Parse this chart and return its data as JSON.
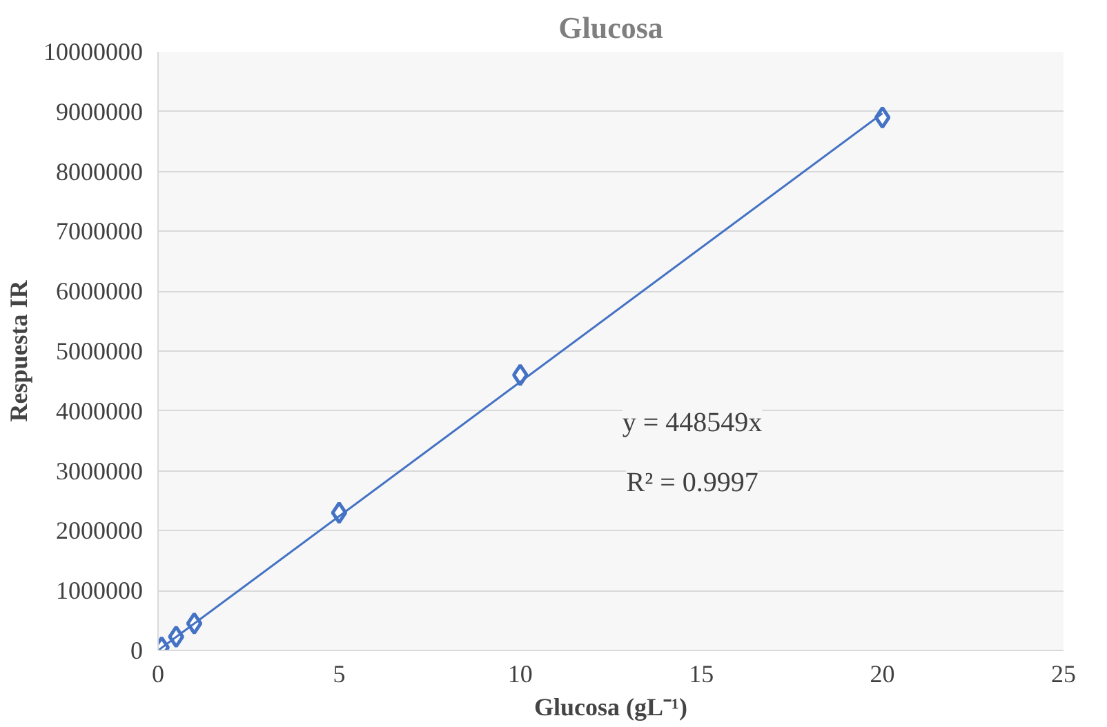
{
  "chart_data": {
    "type": "scatter",
    "title": "Glucosa",
    "xlabel": "Glucosa (gL⁻¹)",
    "ylabel": "Respuesta IR",
    "xlim": [
      0,
      25
    ],
    "xticks": [
      0,
      5,
      10,
      15,
      20,
      25
    ],
    "ylim": [
      0,
      10000000
    ],
    "yticks": [
      0,
      1000000,
      2000000,
      3000000,
      4000000,
      5000000,
      6000000,
      7000000,
      8000000,
      9000000,
      10000000
    ],
    "grid": "y",
    "series": [
      {
        "color": "#4472c4",
        "marker": "diamond",
        "x": [
          0.1,
          0.5,
          1,
          5,
          10,
          20
        ],
        "values": [
          50000,
          230000,
          450000,
          2300000,
          4600000,
          8900000
        ]
      },
      {
        "type": "line",
        "color": "#4472c4",
        "x": [
          0,
          20
        ],
        "values": [
          0,
          8970000
        ],
        "line_style": "solid",
        "marker": "none"
      }
    ],
    "annotations": [
      "y = 448549x",
      "R² = 0.9997"
    ]
  }
}
